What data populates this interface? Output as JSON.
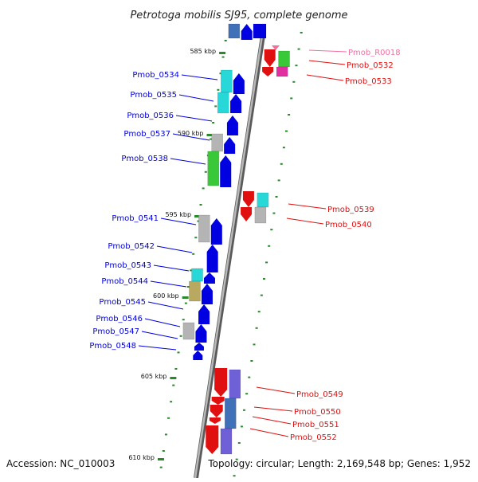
{
  "map": {
    "title": "Petrotoga mobilis SJ95, complete genome",
    "accession": "Accession: NC_010003",
    "topology": "Topology: circular; Length: 2,169,548 bp; Genes: 1,952"
  },
  "colors": {
    "forward": "#0000e0",
    "reverse": "#e01010",
    "rna": "#f070a0",
    "cyan": "#28d8d8",
    "green": "#38c838",
    "grey": "#b4b4b4",
    "steel": "#4070b8",
    "purple": "#7060d8",
    "olive": "#b8a860",
    "magenta": "#e030a0",
    "tick": "#2a8a2a",
    "backbone": "#8c8c8c"
  },
  "kbp_markers": [
    {
      "label": "585 kbp"
    },
    {
      "label": "590 kbp"
    },
    {
      "label": "595 kbp"
    },
    {
      "label": "600 kbp"
    },
    {
      "label": "605 kbp"
    },
    {
      "label": "610 kbp"
    }
  ],
  "genes_forward": [
    {
      "label": "Pmob_0534",
      "color": "#0000e0"
    },
    {
      "label": "Pmob_0535",
      "color": "#0000e0"
    },
    {
      "label": "Pmob_0536",
      "color": "#0000e0"
    },
    {
      "label": "Pmob_0537",
      "color": "#0000e0"
    },
    {
      "label": "Pmob_0538",
      "color": "#0000e0"
    },
    {
      "label": "Pmob_0541",
      "color": "#0000e0"
    },
    {
      "label": "Pmob_0542",
      "color": "#0000e0"
    },
    {
      "label": "Pmob_0543",
      "color": "#0000e0"
    },
    {
      "label": "Pmob_0544",
      "color": "#0000e0"
    },
    {
      "label": "Pmob_0545",
      "color": "#0000e0"
    },
    {
      "label": "Pmob_0546",
      "color": "#0000e0"
    },
    {
      "label": "Pmob_0547",
      "color": "#0000e0"
    },
    {
      "label": "Pmob_0548",
      "color": "#0000e0"
    }
  ],
  "genes_reverse": [
    {
      "label": "Pmob_R0018",
      "color": "#f070a0"
    },
    {
      "label": "Pmob_0532",
      "color": "#e01010"
    },
    {
      "label": "Pmob_0533",
      "color": "#e01010"
    },
    {
      "label": "Pmob_0539",
      "color": "#e01010"
    },
    {
      "label": "Pmob_0540",
      "color": "#e01010"
    },
    {
      "label": "Pmob_0549",
      "color": "#e01010"
    },
    {
      "label": "Pmob_0550",
      "color": "#e01010"
    },
    {
      "label": "Pmob_0551",
      "color": "#e01010"
    },
    {
      "label": "Pmob_0552",
      "color": "#e01010"
    }
  ]
}
